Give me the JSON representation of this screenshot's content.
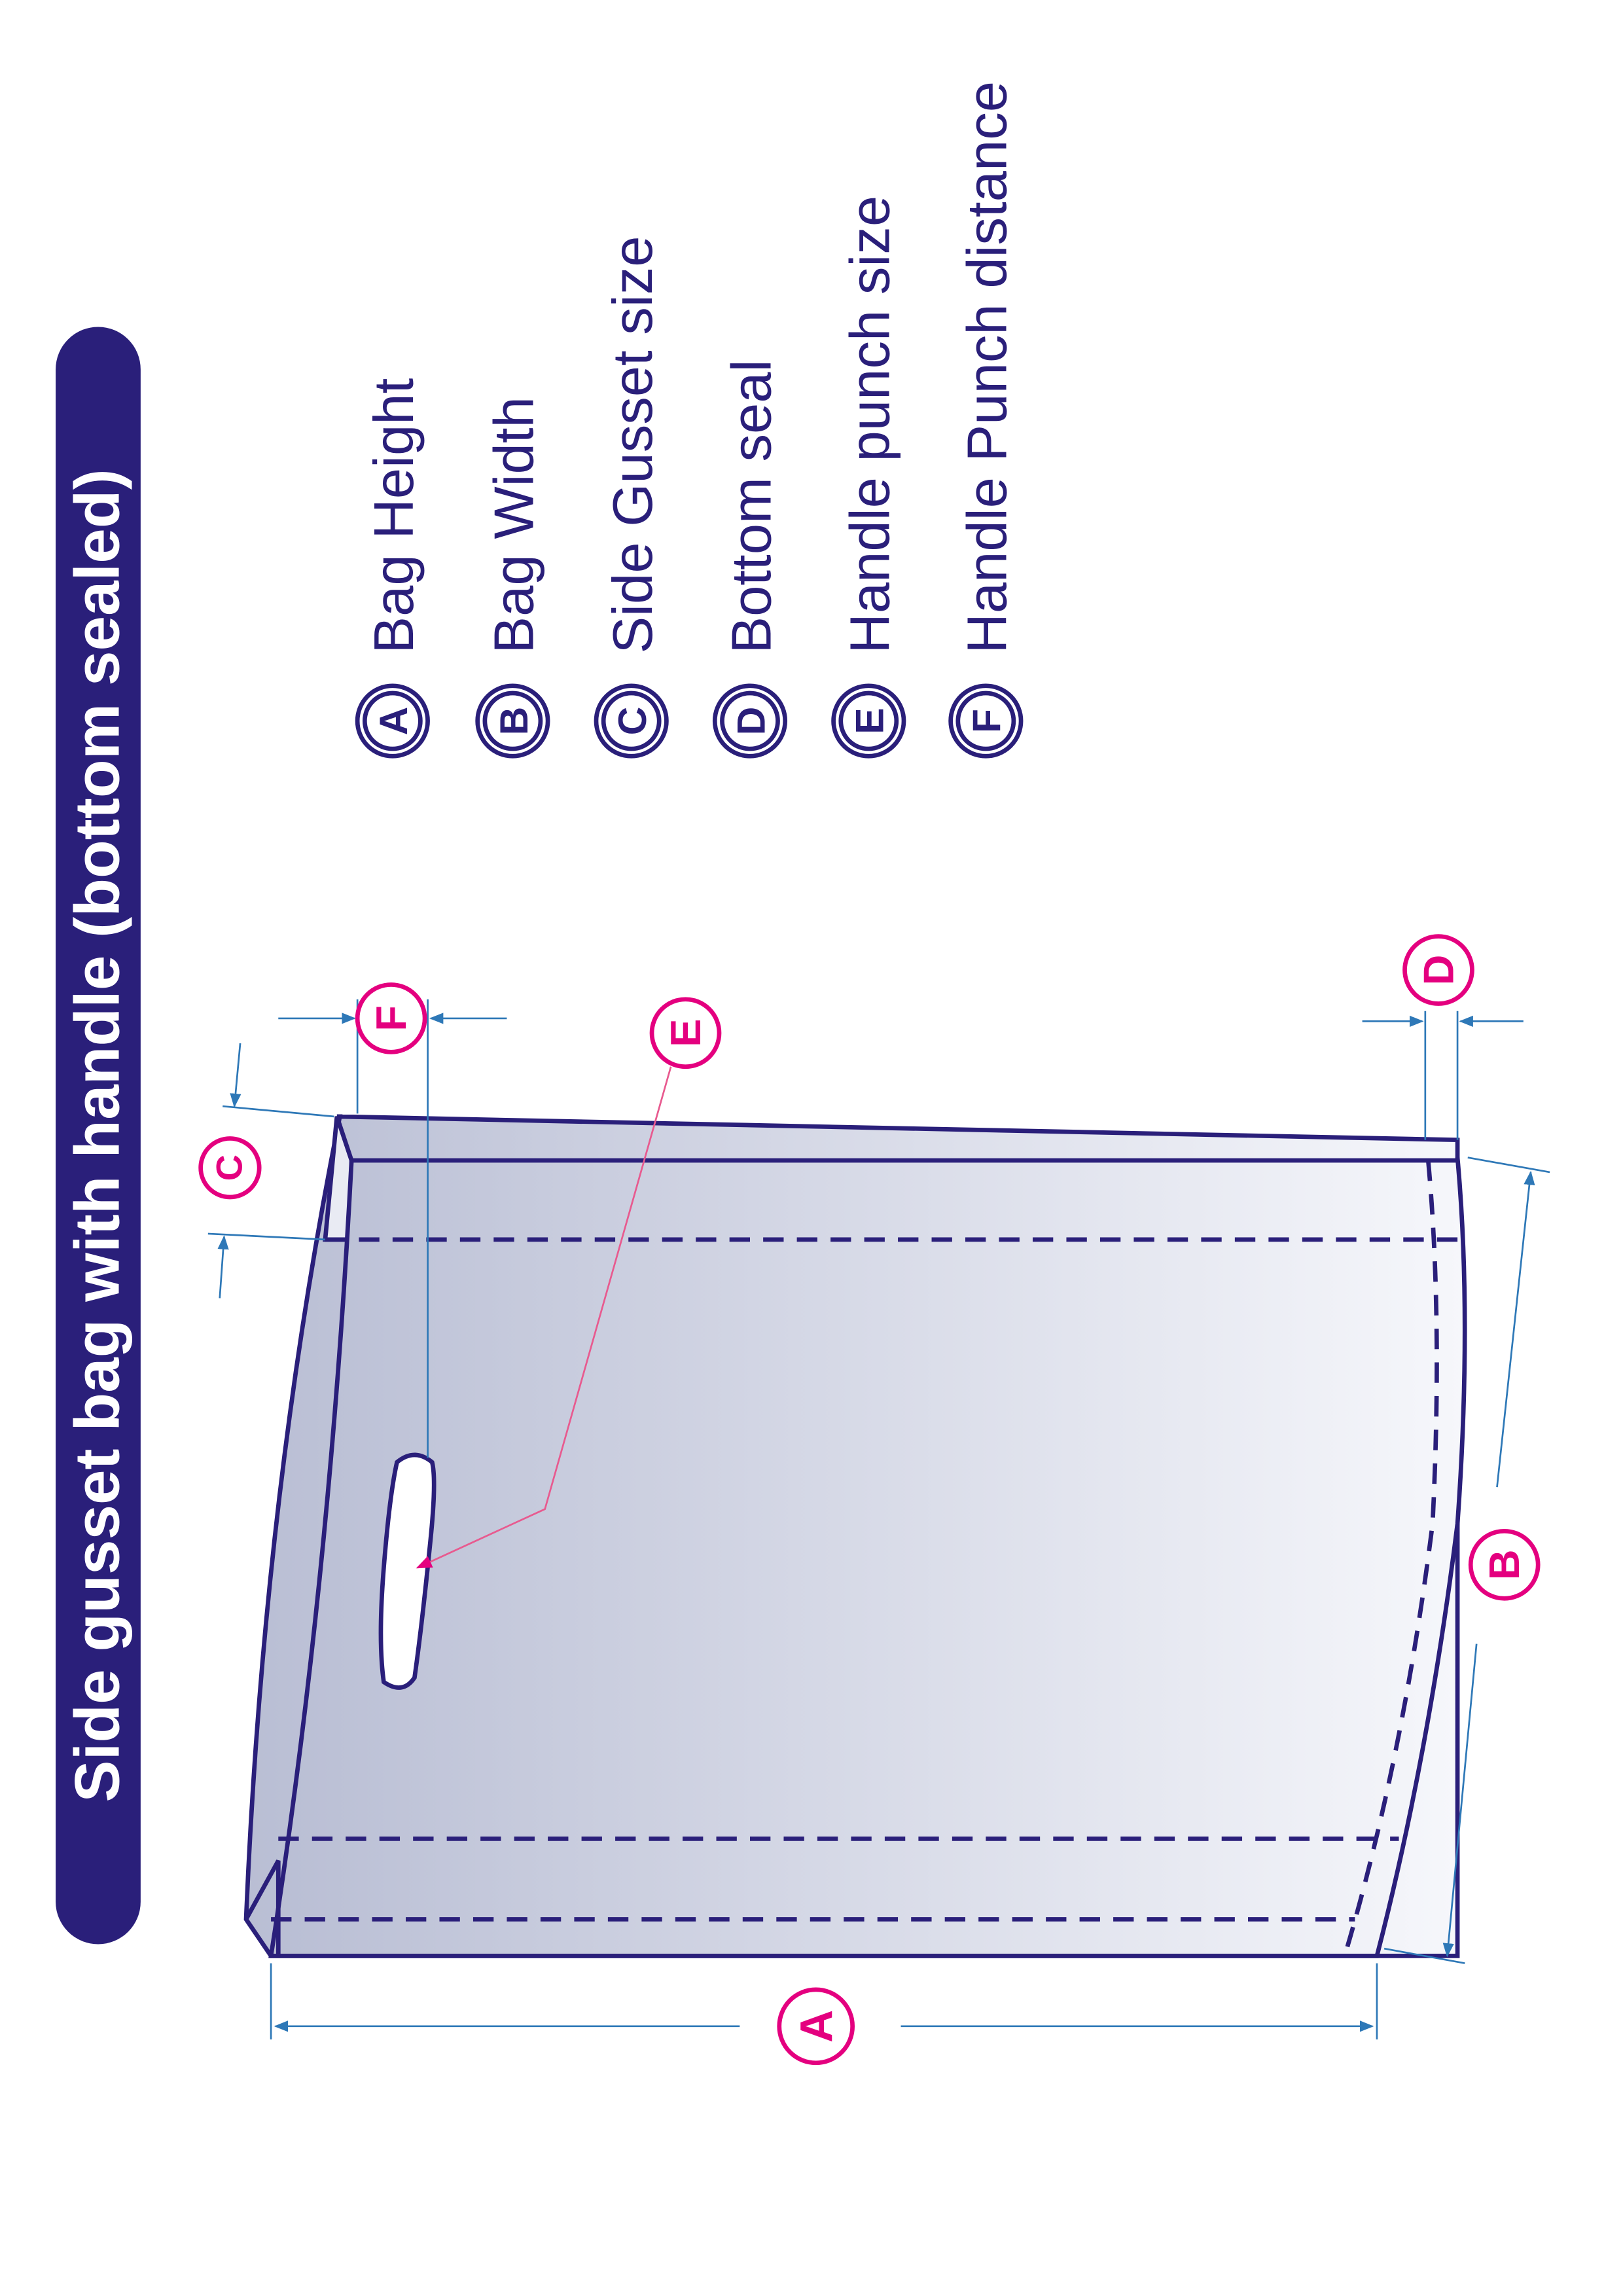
{
  "title": "Side gusset bag with handle (bottom sealed)",
  "colors": {
    "navy": "#2a1f7a",
    "magenta": "#e4007f",
    "dimension": "#2e78b7",
    "leader": "#e85a8f",
    "bag_top": "#f6f7fb",
    "bag_bottom": "#b9bed4",
    "badge_text": "#ffffff"
  },
  "legend": [
    {
      "letter": "A",
      "label": "Bag Height"
    },
    {
      "letter": "B",
      "label": "Bag Width"
    },
    {
      "letter": "C",
      "label": "Side Gusset size"
    },
    {
      "letter": "D",
      "label": "Bottom seal"
    },
    {
      "letter": "E",
      "label": "Handle punch size"
    },
    {
      "letter": "F",
      "label": "Handle Punch distance"
    }
  ],
  "markers": {
    "A": "A",
    "B": "B",
    "C": "C",
    "D": "D",
    "E": "E",
    "F": "F"
  }
}
